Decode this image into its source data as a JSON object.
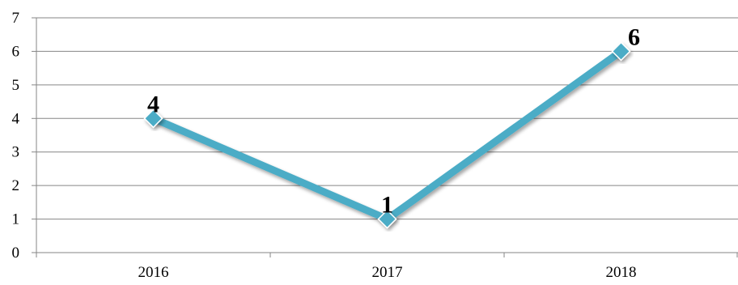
{
  "chart_data": {
    "type": "line",
    "categories": [
      "2016",
      "2017",
      "2018"
    ],
    "series": [
      {
        "values": [
          4,
          1,
          6
        ],
        "data_labels": [
          "4",
          "1",
          "6"
        ]
      }
    ],
    "ylim": [
      0,
      7
    ],
    "yticks": [
      "0",
      "1",
      "2",
      "3",
      "4",
      "5",
      "6",
      "7"
    ],
    "grid": true,
    "legend": "none",
    "colors": {
      "line": "#4BACC6",
      "grid": "#868686",
      "axis": "#868686",
      "text": "#000000"
    }
  }
}
